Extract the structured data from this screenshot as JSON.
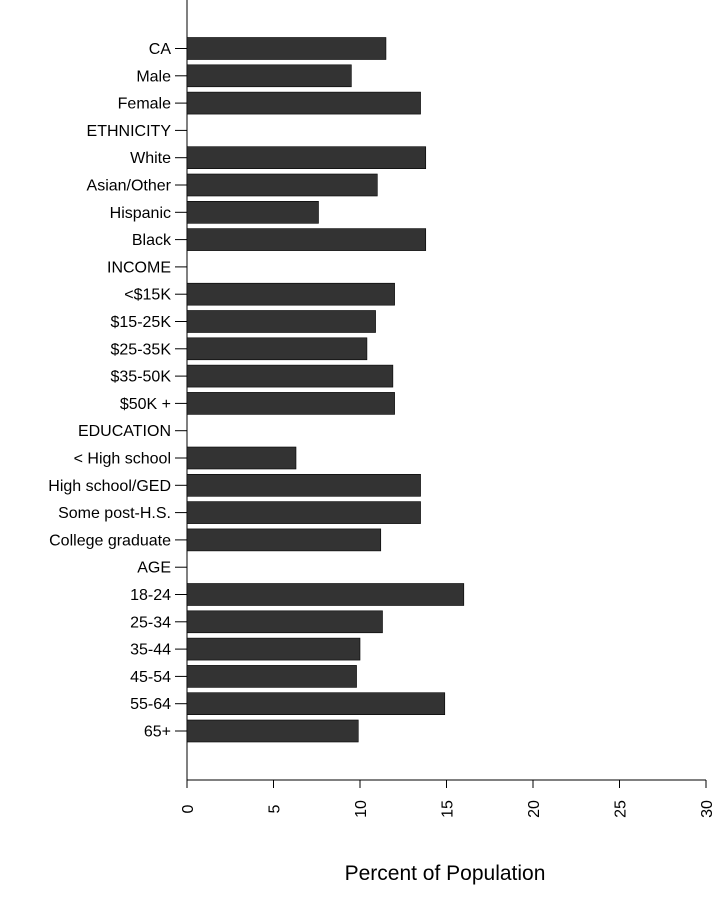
{
  "chart_data": {
    "type": "bar",
    "orientation": "horizontal",
    "title": "",
    "xlabel": "Percent of Population",
    "ylabel": "",
    "xlim": [
      0,
      30
    ],
    "xticks": [
      "0",
      "5",
      "10",
      "15",
      "20",
      "25",
      "30"
    ],
    "grid": false,
    "bar_color": "#333333",
    "categories": [
      "CA",
      "Male",
      "Female",
      "ETHNICITY",
      "White",
      "Asian/Other",
      "Hispanic",
      "Black",
      "INCOME",
      "<$15K",
      "$15-25K",
      "$25-35K",
      "$35-50K",
      "$50K +",
      "EDUCATION",
      "< High school",
      "High school/GED",
      "Some post-H.S.",
      "College graduate",
      "AGE",
      "18-24",
      "25-34",
      "35-44",
      "45-54",
      "55-64",
      "65+"
    ],
    "values": [
      11.5,
      9.5,
      13.5,
      0,
      13.8,
      11.0,
      7.6,
      13.8,
      0,
      12.0,
      10.9,
      10.4,
      11.9,
      12.0,
      0,
      6.3,
      13.5,
      13.5,
      11.2,
      0,
      16.0,
      11.3,
      10.0,
      9.8,
      14.9,
      9.9
    ]
  }
}
